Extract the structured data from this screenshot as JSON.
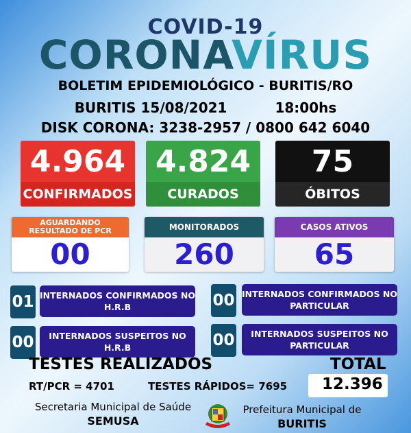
{
  "header": {
    "title_small": "COVID-19",
    "title_part1": "CORONA",
    "title_part2": "VÍRUS",
    "bulletin": "BOLETIM EPIDEMIOLÓGICO - BURITIS/RO",
    "date": "BURITIS 15/08/2021",
    "time": "18:00hs",
    "hotline": "DISK CORONA: 3238-2957 / 0800 642 6040"
  },
  "main_stats": [
    {
      "value": "4.964",
      "label": "CONFIRMADOS",
      "color": "#e8342f"
    },
    {
      "value": "4.824",
      "label": "CURADOS",
      "color": "#3aa548"
    },
    {
      "value": "75",
      "label": "ÓBITOS",
      "color": "#111111"
    }
  ],
  "secondary_stats": [
    {
      "label": "AGUARDANDO RESULTADO DE PCR",
      "value": "00",
      "color": "#ee6a2e"
    },
    {
      "label": "MONITORADOS",
      "value": "260",
      "color": "#1d5a66"
    },
    {
      "label": "CASOS ATIVOS",
      "value": "65",
      "color": "#7b3bb0"
    }
  ],
  "hospital": [
    {
      "value": "01",
      "label": "INTERNADOS CONFIRMADOS NO H.R.B"
    },
    {
      "value": "00",
      "label": "INTERNADOS CONFIRMADOS NO PARTICULAR"
    },
    {
      "value": "00",
      "label": "INTERNADOS SUSPEITOS NO H.R.B"
    },
    {
      "value": "00",
      "label": "INTERNADOS SUSPEITOS NO PARTICULAR"
    }
  ],
  "tests": {
    "title": "TESTES REALIZADOS",
    "rtpcr": "RT/PCR = 4701",
    "rapid": "TESTES RÁPIDOS= 7695",
    "total_label": "TOTAL",
    "total_value": "12.396"
  },
  "footer": {
    "secretaria": "Secretaria Municipal de Saúde",
    "semusa": "SEMUSA",
    "prefeitura": "Prefeitura Municipal de",
    "buritis": "BURITIS"
  }
}
